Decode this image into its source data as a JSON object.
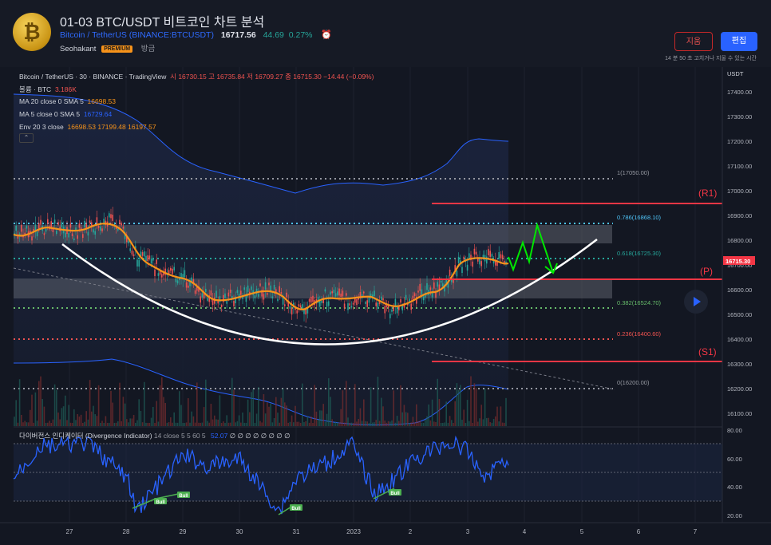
{
  "header": {
    "title": "01-03 BTC/USDT 비트코인 차트 분석",
    "symbol_name": "Bitcoin / TetherUS",
    "symbol_exchange": "(BINANCE:BTCUSDT)",
    "price": "16717.56",
    "change": "44.69",
    "change_pct": "0.27%",
    "author": "Seohakant",
    "badge": "PREMIUM",
    "posted": "방금",
    "delete_label": "지움",
    "edit_label": "편집",
    "hint": "14 분 50 초 고치거나 지울 수 있는 시간"
  },
  "legend": {
    "title": "Bitcoin / TetherUS · 30 · BINANCE · TradingView",
    "ohlc": "시 16730.15 고 16735.84 저 16709.27 종 16715.30 −14.44 (−0.09%)",
    "volume": "볼륨 · BTC",
    "volume_value": "3.186K",
    "ma20": "MA 20 close 0 SMA 5",
    "ma20_value": "16698.53",
    "ma5": "MA 5 close 0 SMA 5",
    "ma5_value": "16729.64",
    "env": "Env 20 3 close",
    "env_values": "16698.53  17199.48  16197.57",
    "collapse": "⌃"
  },
  "indicator": {
    "label": "다이버전스 인디케이터 (Divergence Indicator)",
    "params": "14 close 5 5 60 5",
    "value": "52.07",
    "extras": "∅ ∅ ∅ ∅ ∅ ∅ ∅ ∅",
    "bull_label": "Bull",
    "axis": [
      "80.00",
      "60.00",
      "40.00",
      "20.00"
    ]
  },
  "price_axis": {
    "currency": "USDT",
    "ticks": [
      "17400.00",
      "17300.00",
      "17200.00",
      "17100.00",
      "17000.00",
      "16900.00",
      "16800.00",
      "16700.00",
      "16600.00",
      "16500.00",
      "16400.00",
      "16300.00",
      "16200.00",
      "16100.00"
    ],
    "current": "16715.30"
  },
  "time_axis": [
    "27",
    "28",
    "29",
    "30",
    "31",
    "2023",
    "2",
    "3",
    "4",
    "5",
    "6",
    "7"
  ],
  "fib": [
    {
      "label": "1(17050.00)"
    },
    {
      "label": "0.786(16868.10)"
    },
    {
      "label": "0.618(16725.30)"
    },
    {
      "label": "0.382(16524.70)"
    },
    {
      "label": "0.236(16400.60)"
    },
    {
      "label": "0(16200.00)"
    }
  ],
  "levels": {
    "r1": "(R1)",
    "p": "(P)",
    "s1": "(S1)"
  },
  "colors": {
    "accent": "#2962ff",
    "up": "#26a69a",
    "down": "#ef5350",
    "ma": "#f7931a",
    "level": "#f23645"
  }
}
